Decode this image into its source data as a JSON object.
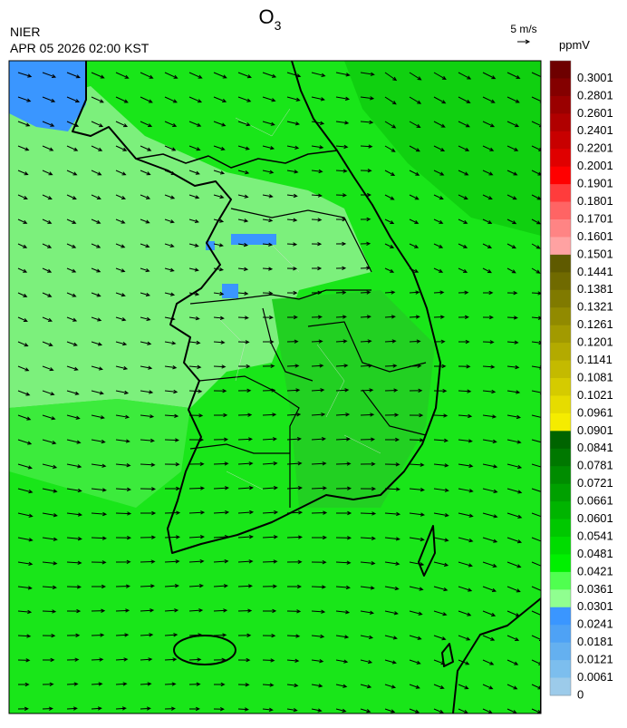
{
  "title": {
    "text": "O",
    "subscript": "3"
  },
  "source": "NIER",
  "timestamp": "APR 05 2026 02:00 KST",
  "wind_reference": "5 m/s",
  "legend": {
    "unit": "ppmV",
    "labels": [
      "0.3001",
      "0.2801",
      "0.2601",
      "0.2401",
      "0.2201",
      "0.2001",
      "0.1901",
      "0.1801",
      "0.1701",
      "0.1601",
      "0.1501",
      "0.1441",
      "0.1381",
      "0.1321",
      "0.1261",
      "0.1201",
      "0.1141",
      "0.1081",
      "0.1021",
      "0.0961",
      "0.0901",
      "0.0841",
      "0.0781",
      "0.0721",
      "0.0661",
      "0.0601",
      "0.0541",
      "0.0481",
      "0.0421",
      "0.0361",
      "0.0301",
      "0.0241",
      "0.0181",
      "0.0121",
      "0.0061",
      "0"
    ],
    "colors": [
      "#6e0000",
      "#840000",
      "#9a0000",
      "#b00000",
      "#c80000",
      "#e00000",
      "#ff0000",
      "#ff3c3c",
      "#ff6464",
      "#ff8484",
      "#ffa2a2",
      "#5f5a00",
      "#706a00",
      "#807a00",
      "#918a00",
      "#a29a00",
      "#b3aa00",
      "#c4ba00",
      "#d5cb00",
      "#e6dc00",
      "#f5ec00",
      "#006400",
      "#007800",
      "#008c00",
      "#00a000",
      "#00b400",
      "#00c800",
      "#00dc00",
      "#00f000",
      "#50ff50",
      "#90ff90",
      "#3a96ff",
      "#4ea2f5",
      "#64b0f0",
      "#7cbeee",
      "#9ccbea"
    ]
  }
}
